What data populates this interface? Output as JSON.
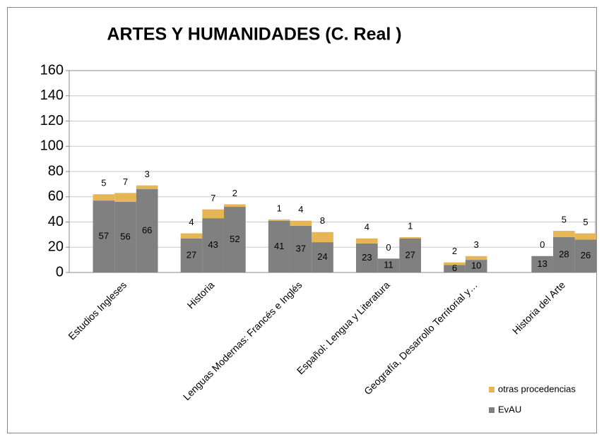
{
  "chart_data": {
    "type": "bar",
    "stacked": true,
    "title": "ARTES Y HUMANIDADES (C. Real )",
    "categories": [
      "Estudios Ingleses",
      "Historia",
      "Lenguas Modernas: Francés e Inglés",
      "Español: Lengua y Literatura",
      "Geografía, Desarrollo Territorial y…",
      "Historia del Arte"
    ],
    "series": [
      {
        "name": "EvAU",
        "color": "#808080",
        "values": [
          [
            57,
            56,
            66
          ],
          [
            27,
            43,
            52
          ],
          [
            41,
            37,
            24
          ],
          [
            23,
            11,
            27
          ],
          [
            6,
            10,
            null
          ],
          [
            13,
            28,
            26
          ]
        ]
      },
      {
        "name": "otras procedencias",
        "color": "#e6b655",
        "values": [
          [
            5,
            7,
            3
          ],
          [
            4,
            7,
            2
          ],
          [
            1,
            4,
            8
          ],
          [
            4,
            0,
            1
          ],
          [
            2,
            3,
            null
          ],
          [
            0,
            5,
            5
          ]
        ]
      }
    ],
    "ylim": [
      0,
      160
    ],
    "yticks": [
      0,
      20,
      40,
      60,
      80,
      100,
      120,
      140,
      160
    ],
    "grid": true
  }
}
